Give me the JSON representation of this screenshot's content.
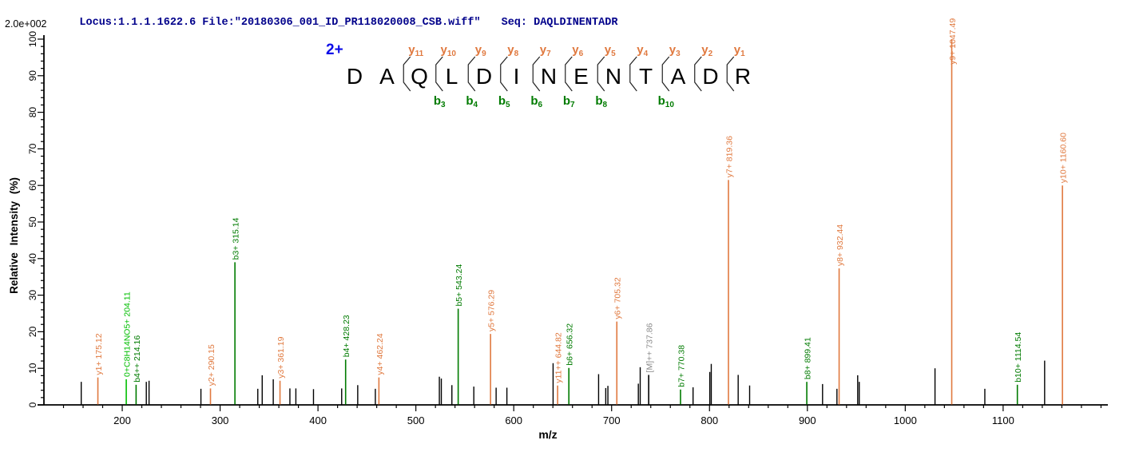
{
  "header": {
    "locus": "Locus:1.1.1.1622.6",
    "file": "File:\"20180306_001_ID_PR118020008_CSB.wiff\"",
    "seq": "Seq: DAQLDINENTADR",
    "base_peak_intensity": "2.0e+002"
  },
  "ladder": {
    "charge_label": "2+",
    "sequence": [
      "D",
      "A",
      "Q",
      "L",
      "D",
      "I",
      "N",
      "E",
      "N",
      "T",
      "A",
      "D",
      "R"
    ],
    "y_ions": [
      {
        "label": "y",
        "sub": "11",
        "boundary": 2
      },
      {
        "label": "y",
        "sub": "10",
        "boundary": 3
      },
      {
        "label": "y",
        "sub": "9",
        "boundary": 4
      },
      {
        "label": "y",
        "sub": "8",
        "boundary": 5
      },
      {
        "label": "y",
        "sub": "7",
        "boundary": 6
      },
      {
        "label": "y",
        "sub": "6",
        "boundary": 7
      },
      {
        "label": "y",
        "sub": "5",
        "boundary": 8
      },
      {
        "label": "y",
        "sub": "4",
        "boundary": 9
      },
      {
        "label": "y",
        "sub": "3",
        "boundary": 10
      },
      {
        "label": "y",
        "sub": "2",
        "boundary": 11
      },
      {
        "label": "y",
        "sub": "1",
        "boundary": 12
      }
    ],
    "b_ions": [
      {
        "label": "b",
        "sub": "3",
        "boundary": 3
      },
      {
        "label": "b",
        "sub": "4",
        "boundary": 4
      },
      {
        "label": "b",
        "sub": "5",
        "boundary": 5
      },
      {
        "label": "b",
        "sub": "6",
        "boundary": 6
      },
      {
        "label": "b",
        "sub": "7",
        "boundary": 7
      },
      {
        "label": "b",
        "sub": "8",
        "boundary": 8
      },
      {
        "label": "b",
        "sub": "10",
        "boundary": 10
      }
    ],
    "marked_boundaries": [
      2,
      3,
      4,
      5,
      6,
      7,
      8,
      9,
      10,
      11,
      12
    ]
  },
  "chart_data": {
    "type": "bar",
    "subtype": "centroid-mass-spectrum",
    "title": "",
    "xlabel": "m/z",
    "ylabel": "Relative  Intensity (%)",
    "xlim": [
      120,
      1207
    ],
    "ylim": [
      0,
      100
    ],
    "grid": false,
    "x_axis": {
      "major_tick_labels": [
        200,
        300,
        400,
        500,
        600,
        700,
        800,
        900,
        1000,
        1100
      ],
      "minor_step": 20,
      "minor_start": 140,
      "minor_end": 1200
    },
    "y_axis": {
      "major_step": 10,
      "minor_step": 2
    },
    "peaks": [
      {
        "mz": 158.1,
        "intensity": 6.3,
        "kind": "unassigned"
      },
      {
        "mz": 175.12,
        "intensity": 7.5,
        "kind": "y",
        "label": "y1+ 175.12"
      },
      {
        "mz": 204.11,
        "intensity": 7.0,
        "kind": "special",
        "label": "0+C8H14NO5+ 204.11"
      },
      {
        "mz": 214.16,
        "intensity": 5.5,
        "kind": "b",
        "label": "b4++ 214.16"
      },
      {
        "mz": 224.6,
        "intensity": 6.3,
        "kind": "unassigned"
      },
      {
        "mz": 227.4,
        "intensity": 6.6,
        "kind": "unassigned"
      },
      {
        "mz": 280.4,
        "intensity": 4.4,
        "kind": "unassigned"
      },
      {
        "mz": 290.15,
        "intensity": 4.5,
        "kind": "y",
        "label": "y2+ 290.15"
      },
      {
        "mz": 315.14,
        "intensity": 39.0,
        "kind": "b",
        "label": "b3+ 315.14"
      },
      {
        "mz": 338.5,
        "intensity": 4.4,
        "kind": "unassigned"
      },
      {
        "mz": 343.0,
        "intensity": 8.1,
        "kind": "unassigned"
      },
      {
        "mz": 354.3,
        "intensity": 7.0,
        "kind": "unassigned"
      },
      {
        "mz": 361.19,
        "intensity": 6.6,
        "kind": "y",
        "label": "y3+ 361.19"
      },
      {
        "mz": 371.3,
        "intensity": 4.5,
        "kind": "unassigned"
      },
      {
        "mz": 377.4,
        "intensity": 4.5,
        "kind": "unassigned"
      },
      {
        "mz": 395.4,
        "intensity": 4.3,
        "kind": "unassigned"
      },
      {
        "mz": 424.2,
        "intensity": 4.5,
        "kind": "unassigned"
      },
      {
        "mz": 428.23,
        "intensity": 12.4,
        "kind": "b",
        "label": "b4+ 428.23"
      },
      {
        "mz": 440.6,
        "intensity": 5.4,
        "kind": "unassigned"
      },
      {
        "mz": 458.6,
        "intensity": 4.4,
        "kind": "unassigned"
      },
      {
        "mz": 462.24,
        "intensity": 7.5,
        "kind": "y",
        "label": "y4+ 462.24"
      },
      {
        "mz": 524.0,
        "intensity": 7.7,
        "kind": "unassigned"
      },
      {
        "mz": 526.0,
        "intensity": 7.2,
        "kind": "unassigned"
      },
      {
        "mz": 536.8,
        "intensity": 5.4,
        "kind": "unassigned"
      },
      {
        "mz": 543.24,
        "intensity": 26.3,
        "kind": "b",
        "label": "b5+ 543.24"
      },
      {
        "mz": 559.2,
        "intensity": 5.0,
        "kind": "unassigned"
      },
      {
        "mz": 576.29,
        "intensity": 19.4,
        "kind": "y",
        "label": "y5+ 576.29"
      },
      {
        "mz": 582.0,
        "intensity": 4.7,
        "kind": "unassigned"
      },
      {
        "mz": 593.0,
        "intensity": 4.7,
        "kind": "unassigned"
      },
      {
        "mz": 640.2,
        "intensity": 11.4,
        "kind": "unassigned"
      },
      {
        "mz": 644.82,
        "intensity": 5.3,
        "kind": "y",
        "label": "y11++ 644.82"
      },
      {
        "mz": 656.32,
        "intensity": 10.1,
        "kind": "b",
        "label": "b6+ 656.32"
      },
      {
        "mz": 686.7,
        "intensity": 8.4,
        "kind": "unassigned"
      },
      {
        "mz": 694.0,
        "intensity": 4.6,
        "kind": "unassigned"
      },
      {
        "mz": 696.2,
        "intensity": 5.2,
        "kind": "unassigned"
      },
      {
        "mz": 705.32,
        "intensity": 22.8,
        "kind": "y",
        "label": "y6+ 705.32"
      },
      {
        "mz": 727.3,
        "intensity": 5.8,
        "kind": "unassigned"
      },
      {
        "mz": 729.2,
        "intensity": 10.3,
        "kind": "unassigned"
      },
      {
        "mz": 737.86,
        "intensity": 8.2,
        "kind": "precursor",
        "label": "[M]++ 737.86"
      },
      {
        "mz": 770.38,
        "intensity": 4.2,
        "kind": "b",
        "label": "b7+ 770.38"
      },
      {
        "mz": 783.2,
        "intensity": 4.8,
        "kind": "unassigned"
      },
      {
        "mz": 800.3,
        "intensity": 9.0,
        "kind": "unassigned"
      },
      {
        "mz": 801.8,
        "intensity": 11.2,
        "kind": "unassigned"
      },
      {
        "mz": 819.36,
        "intensity": 61.5,
        "kind": "y",
        "label": "y7+ 819.36"
      },
      {
        "mz": 829.3,
        "intensity": 8.2,
        "kind": "unassigned"
      },
      {
        "mz": 841.0,
        "intensity": 5.3,
        "kind": "unassigned"
      },
      {
        "mz": 899.41,
        "intensity": 6.3,
        "kind": "b",
        "label": "b8+ 899.41"
      },
      {
        "mz": 915.5,
        "intensity": 5.7,
        "kind": "unassigned"
      },
      {
        "mz": 930.2,
        "intensity": 4.4,
        "kind": "unassigned"
      },
      {
        "mz": 932.44,
        "intensity": 37.3,
        "kind": "y",
        "label": "y8+ 932.44"
      },
      {
        "mz": 951.4,
        "intensity": 8.1,
        "kind": "unassigned"
      },
      {
        "mz": 953.0,
        "intensity": 6.3,
        "kind": "unassigned"
      },
      {
        "mz": 1030.4,
        "intensity": 10.0,
        "kind": "unassigned"
      },
      {
        "mz": 1047.49,
        "intensity": 100.0,
        "kind": "y",
        "label": "y9+ 1047.49"
      },
      {
        "mz": 1081.3,
        "intensity": 4.4,
        "kind": "unassigned"
      },
      {
        "mz": 1114.54,
        "intensity": 5.5,
        "kind": "b",
        "label": "b10+ 1114.54"
      },
      {
        "mz": 1142.4,
        "intensity": 12.1,
        "kind": "unassigned"
      },
      {
        "mz": 1160.6,
        "intensity": 60.0,
        "kind": "y",
        "label": "y10+ 1160.60"
      }
    ]
  },
  "colors": {
    "y_ion": "#e0793f",
    "b_ion": "#007b00",
    "special_ion": "#00be00",
    "precursor_label": "#8a8a8a",
    "unassigned_peak": "#000000",
    "axis": "#000000",
    "header_text": "#00008b",
    "charge_text": "#0d0de8",
    "sequence_text": "#000000",
    "fence_mark": "#222222"
  }
}
